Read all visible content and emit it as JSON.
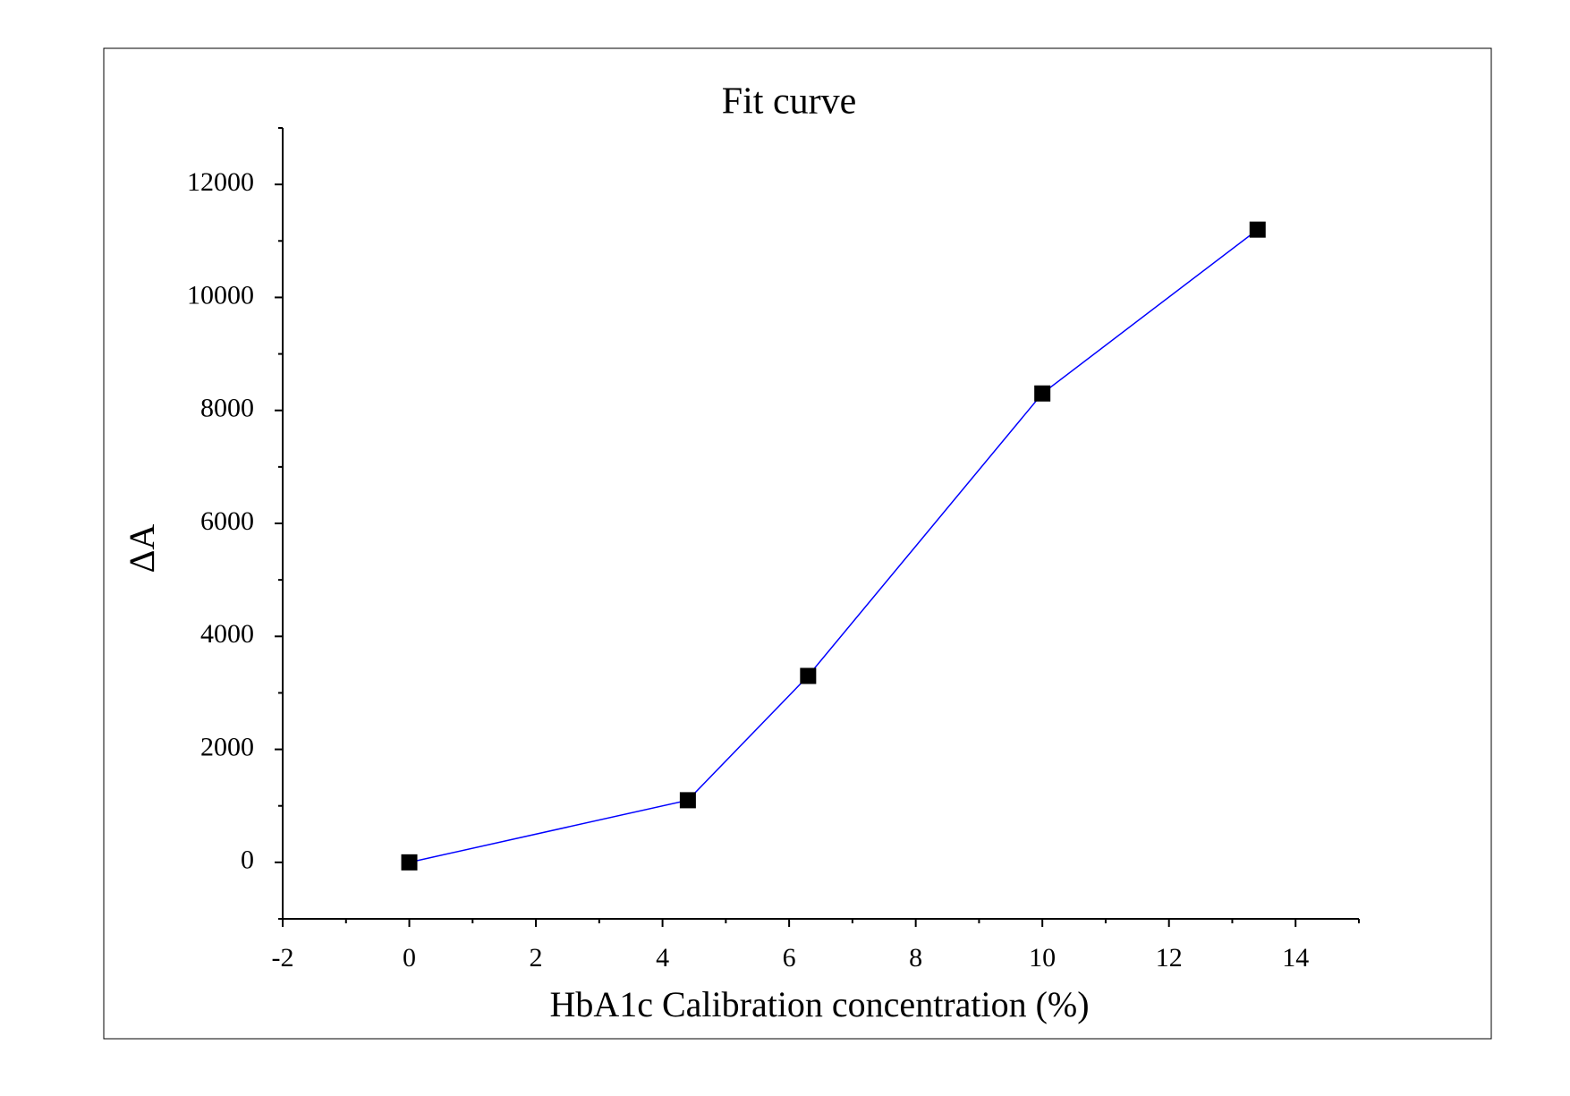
{
  "chart_data": {
    "type": "line",
    "title": "Fit curve",
    "x_label": "HbA1c Calibration concentration (%)",
    "y_label": "ΔA",
    "series": [
      {
        "name": "Fit curve",
        "color": "#0000ff",
        "marker": "square",
        "marker_color": "#000000",
        "x": [
          0,
          4.4,
          6.3,
          10,
          13.4
        ],
        "values": [
          0,
          1100,
          3300,
          8300,
          11200
        ]
      }
    ],
    "xlim": [
      -2,
      15
    ],
    "ylim": [
      -1000,
      13000
    ],
    "xticks": [
      -2,
      0,
      2,
      4,
      6,
      8,
      10,
      12,
      14
    ],
    "yticks": [
      0,
      2000,
      4000,
      6000,
      8000,
      10000,
      12000
    ],
    "xticks_minor": [
      -1,
      1,
      3,
      5,
      7,
      9,
      11,
      13,
      15
    ],
    "yticks_minor": [
      -1000,
      1000,
      3000,
      5000,
      7000,
      9000,
      11000,
      13000
    ],
    "grid": false
  }
}
